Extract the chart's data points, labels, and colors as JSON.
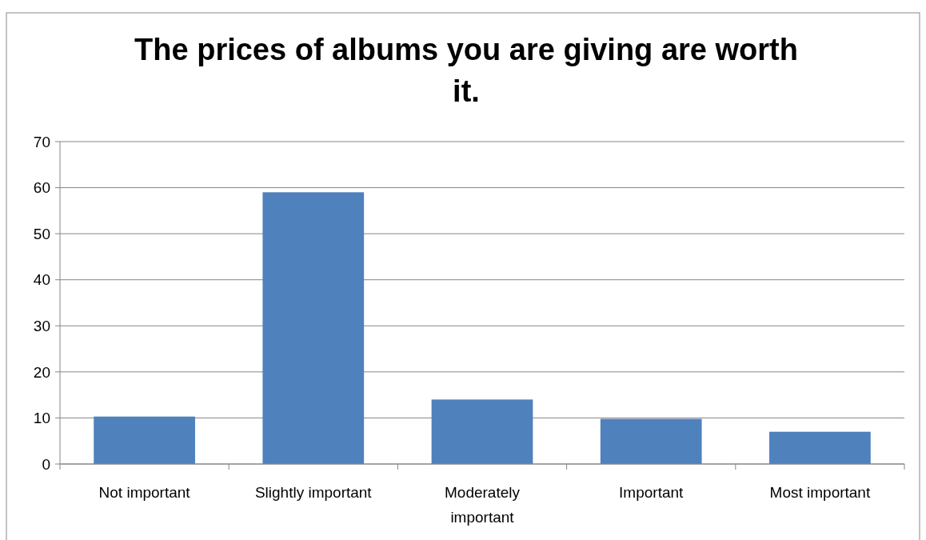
{
  "chart_data": {
    "type": "bar",
    "title": "The prices of albums you are giving are worth it.",
    "categories": [
      "Not important",
      "Slightly important",
      "Moderately important",
      "Important",
      "Most important"
    ],
    "values": [
      10.3,
      59,
      14,
      9.8,
      7
    ],
    "color": "#4f81bd",
    "ylim": [
      0,
      70
    ],
    "yticks": [
      0,
      10,
      20,
      30,
      40,
      50,
      60,
      70
    ],
    "grid": "y"
  }
}
